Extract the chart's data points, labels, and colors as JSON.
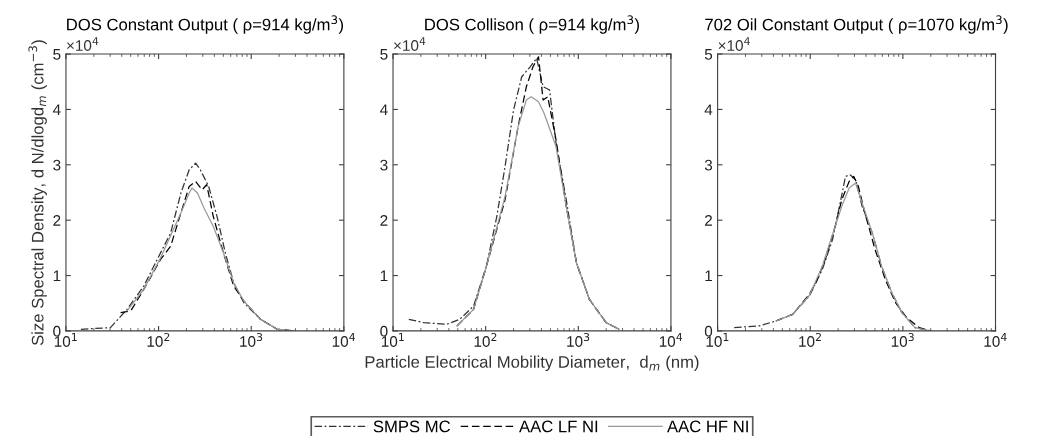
{
  "chart_data": [
    {
      "type": "line",
      "title": "DOS Constant Output ( ρ=914 kg/m$^{3}$)",
      "ylabel": "Size Spectral Density, d N/dlogd$_{m}$ (cm$^{−3}$)",
      "annotations": [
        "×10$^{4}$"
      ],
      "log": "x",
      "grid": false,
      "tick_labels": "y",
      "xlim": [
        10,
        10000
      ],
      "xticks": [
        {
          "value": 10,
          "label": "10$^{1}$"
        },
        {
          "value": 100,
          "label": "10$^{2}$"
        },
        {
          "value": 1000,
          "label": "10$^{3}$"
        },
        {
          "value": 10000,
          "label": "10$^{4}$"
        }
      ],
      "ylim": [
        0,
        5
      ],
      "yticks": [
        0,
        1,
        2,
        3,
        4,
        5
      ],
      "series": [
        {
          "color": "#333333",
          "line_style": "dashdot",
          "x": [
            14.5,
            30.2,
            45.7,
            69.2,
            105,
            135,
            174,
            214,
            251,
            282,
            347,
            427,
            525,
            646,
            832,
            1259,
            1905,
            2884
          ],
          "values": [
            0.03,
            0.06,
            0.39,
            0.81,
            1.41,
            1.77,
            2.49,
            2.91,
            3.03,
            2.91,
            2.61,
            2.07,
            1.41,
            0.87,
            0.51,
            0.21,
            0.03,
            0
          ]
        },
        {
          "color": "#000000",
          "line_style": "dashed",
          "x": [
            38.9,
            50.1,
            69.2,
            105,
            135,
            174,
            214,
            251,
            295,
            331,
            389,
            501,
            646,
            832,
            1259,
            1905,
            2884
          ],
          "values": [
            0.33,
            0.36,
            0.75,
            1.29,
            1.53,
            2.13,
            2.61,
            2.7,
            2.55,
            2.64,
            2.07,
            1.41,
            0.81,
            0.54,
            0.21,
            0.03,
            0
          ]
        },
        {
          "color": "#999999",
          "line_style": "solid",
          "x": [
            45.7,
            69.2,
            105,
            174,
            214,
            229,
            263,
            309,
            389,
            501,
            646,
            832,
            1259,
            1905,
            2884
          ],
          "values": [
            0.36,
            0.75,
            1.32,
            2.13,
            2.49,
            2.58,
            2.49,
            2.22,
            1.89,
            1.41,
            0.87,
            0.54,
            0.21,
            0.03,
            0
          ]
        }
      ]
    },
    {
      "type": "line",
      "title": "DOS Collison ( ρ=914 kg/m$^{3}$)",
      "xlabel": "Particle Electrical Mobility Diameter,  d$_{m}$ (nm)",
      "annotations": [
        "×10$^{4}$"
      ],
      "log": "x",
      "grid": false,
      "legend": "bottom",
      "tick_labels": "y",
      "xlim": [
        10,
        10000
      ],
      "xticks": [
        {
          "value": 10,
          "label": "10$^{1}$"
        },
        {
          "value": 100,
          "label": "10$^{2}$"
        },
        {
          "value": 1000,
          "label": "10$^{3}$"
        },
        {
          "value": 10000,
          "label": "10$^{4}$"
        }
      ],
      "ylim": [
        0,
        5
      ],
      "yticks": [
        0,
        1,
        2,
        3,
        4,
        5
      ],
      "series": [
        {
          "name": "SMPS MC",
          "color": "#333333",
          "line_style": "dashdot",
          "x": [
            14.8,
            21.4,
            38,
            52.5,
            74.1,
            102,
            132,
            162,
            200,
            245,
            302,
            355,
            417,
            490,
            575,
            741,
            955,
            1318,
            1995,
            2754
          ],
          "values": [
            0.21,
            0.15,
            0.12,
            0.21,
            0.45,
            1.17,
            2.07,
            2.97,
            3.99,
            4.59,
            4.77,
            4.92,
            4.41,
            4.35,
            3.39,
            2.37,
            1.23,
            0.57,
            0.15,
            0.03
          ]
        },
        {
          "name": "AAC LF NI",
          "color": "#000000",
          "line_style": "dashed",
          "x": [
            49,
            74.1,
            102,
            162,
            224,
            275,
            324,
            372,
            417,
            468,
            575,
            741,
            955,
            1318,
            1995,
            2754
          ],
          "values": [
            0.09,
            0.39,
            1.17,
            2.37,
            3.69,
            4.41,
            4.77,
            4.95,
            4.17,
            4.23,
            3.45,
            2.25,
            1.23,
            0.57,
            0.15,
            0.03
          ]
        },
        {
          "name": "AAC HF NI",
          "color": "#999999",
          "line_style": "solid",
          "x": [
            49,
            74.1,
            102,
            162,
            224,
            275,
            309,
            372,
            427,
            575,
            741,
            955,
            1318,
            1995,
            2754
          ],
          "values": [
            0.09,
            0.39,
            1.17,
            2.43,
            3.69,
            4.17,
            4.23,
            4.14,
            3.93,
            3.33,
            2.25,
            1.23,
            0.57,
            0.15,
            0.03
          ]
        }
      ]
    },
    {
      "type": "line",
      "title": "702 Oil Constant Output ( ρ=1070 kg/m$^{3}$)",
      "annotations": [
        "×10$^{4}$"
      ],
      "log": "x",
      "grid": false,
      "tick_labels": "y",
      "xlim": [
        10,
        10000
      ],
      "xticks": [
        {
          "value": 10,
          "label": "10$^{1}$"
        },
        {
          "value": 100,
          "label": "10$^{2}$"
        },
        {
          "value": 1000,
          "label": "10$^{3}$"
        },
        {
          "value": 10000,
          "label": "10$^{4}$"
        }
      ],
      "ylim": [
        0,
        5
      ],
      "yticks": [
        0,
        1,
        2,
        3,
        4,
        5
      ],
      "series": [
        {
          "color": "#333333",
          "line_style": "dashdot",
          "x": [
            15.1,
            28.2,
            42.7,
            64.6,
            97.7,
            135,
            174,
            214,
            240,
            269,
            309,
            363,
            468,
            589,
            759,
            977,
            1349,
            2000
          ],
          "values": [
            0.06,
            0.09,
            0.18,
            0.3,
            0.63,
            1.11,
            1.65,
            2.37,
            2.79,
            2.82,
            2.73,
            2.25,
            1.77,
            1.17,
            0.69,
            0.33,
            0.06,
            0
          ]
        },
        {
          "color": "#000000",
          "line_style": "dashed",
          "x": [
            42.7,
            64.6,
            97.7,
            115,
            145,
            186,
            219,
            263,
            295,
            331,
            389,
            501,
            646,
            832,
            1100,
            1500,
            2000
          ],
          "values": [
            0.18,
            0.3,
            0.66,
            0.87,
            1.29,
            1.89,
            2.37,
            2.7,
            2.79,
            2.61,
            2.13,
            1.47,
            0.93,
            0.51,
            0.24,
            0.06,
            0
          ]
        },
        {
          "color": "#999999",
          "line_style": "solid",
          "x": [
            42.7,
            64.6,
            97.7,
            135,
            186,
            219,
            263,
            309,
            363,
            468,
            589,
            759,
            977,
            1349,
            2000
          ],
          "values": [
            0.18,
            0.3,
            0.64,
            1.17,
            1.89,
            2.25,
            2.58,
            2.67,
            2.31,
            1.77,
            1.17,
            0.69,
            0.33,
            0.06,
            0
          ]
        }
      ]
    }
  ]
}
